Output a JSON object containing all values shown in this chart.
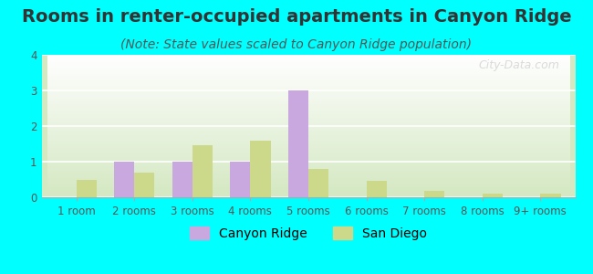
{
  "title": "Rooms in renter-occupied apartments in Canyon Ridge",
  "subtitle": "(Note: State values scaled to Canyon Ridge population)",
  "categories": [
    "1 room",
    "2 rooms",
    "3 rooms",
    "4 rooms",
    "5 rooms",
    "6 rooms",
    "7 rooms",
    "8 rooms",
    "9+ rooms"
  ],
  "canyon_ridge": [
    0,
    1.0,
    1.0,
    1.0,
    3.0,
    0,
    0,
    0,
    0
  ],
  "san_diego": [
    0.5,
    0.7,
    1.45,
    1.6,
    0.8,
    0.47,
    0.18,
    0.1,
    0.1
  ],
  "canyon_ridge_color": "#c9a8e0",
  "san_diego_color": "#ccd98a",
  "background_color": "#00ffff",
  "plot_bg_top": "#ffffff",
  "plot_bg_bottom": "#d4e8c2",
  "ylim": [
    0,
    4
  ],
  "yticks": [
    0,
    1,
    2,
    3,
    4
  ],
  "bar_width": 0.35,
  "title_fontsize": 14,
  "subtitle_fontsize": 10,
  "tick_fontsize": 8.5,
  "legend_fontsize": 10,
  "grid_color": "#ffffff",
  "watermark": "City-Data.com"
}
